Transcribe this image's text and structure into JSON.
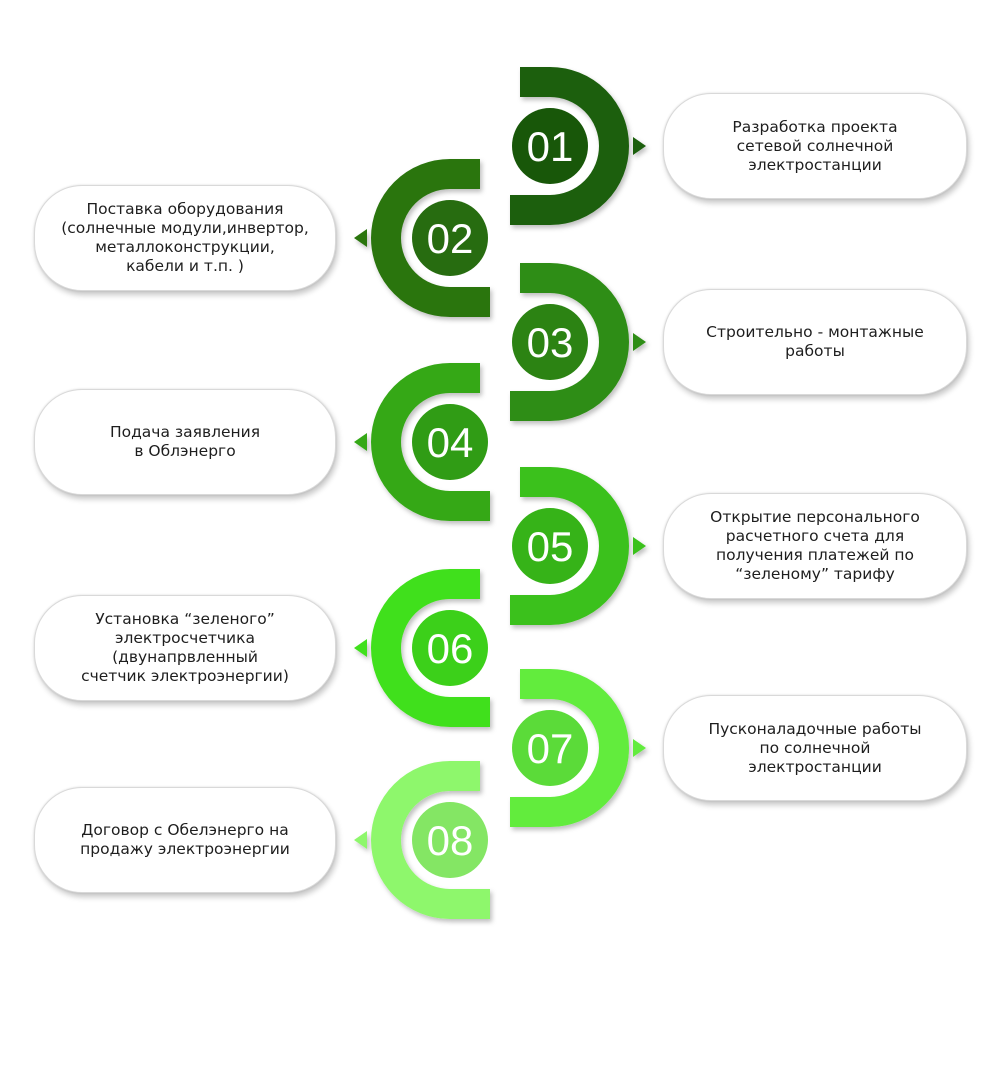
{
  "steps": [
    {
      "number": "01",
      "side": "right",
      "color": "#1a5e0a",
      "text": "Разработка проекта\nсетевой солнечной\nэлектростанции"
    },
    {
      "number": "02",
      "side": "left",
      "color": "#2a7411",
      "text": "Поставка оборудования\n(солнечные модули,инвертор,\nметаллоконструкции,\nкабели и т.п. )"
    },
    {
      "number": "03",
      "side": "right",
      "color": "#2f8d14",
      "text": "Строительно - монтажные\nработы"
    },
    {
      "number": "04",
      "side": "left",
      "color": "#34a817",
      "text": "Подача заявления\nв Облэнерго"
    },
    {
      "number": "05",
      "side": "right",
      "color": "#3ac11a",
      "text": "Открытие персонального\nрасчетного счета для\nполучения платежей по\n“зеленому” тарифу"
    },
    {
      "number": "06",
      "side": "left",
      "color": "#41e01c",
      "text": "Установка “зеленого”\nэлектросчетчика\n(двунапрвленный\nсчетчик электроэнергии)"
    },
    {
      "number": "07",
      "side": "right",
      "color": "#62ec3d",
      "text": "Пусконаладочные работы\nпо солнечной\nэлектростанции"
    },
    {
      "number": "08",
      "side": "left",
      "color": "#8ef76c",
      "text": "Договор с Обелэнерго на\nпродажу электроэнергии"
    }
  ]
}
